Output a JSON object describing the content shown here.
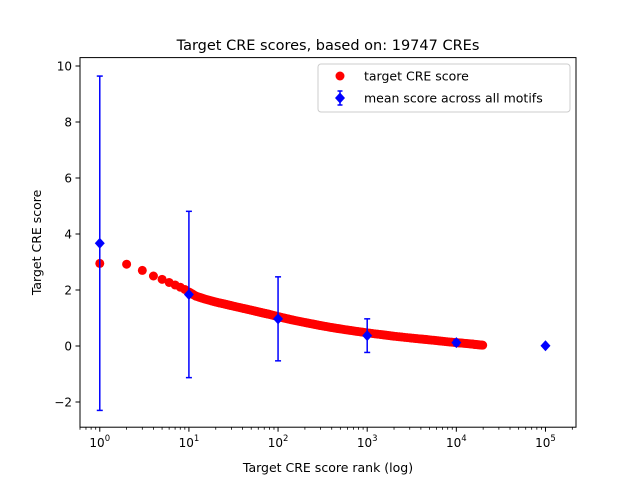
{
  "chart_data": {
    "type": "scatter",
    "title": "Target CRE scores, based on: 19747 CREs",
    "xlabel": "Target CRE score rank (log)",
    "ylabel": "Target CRE score",
    "xscale": "log",
    "xlim": [
      0.6,
      220000
    ],
    "ylim": [
      -2.9,
      10.3
    ],
    "grid": false,
    "legend_position": "upper-right",
    "x_ticks": [
      {
        "value": 1,
        "base": "10",
        "exp": "0"
      },
      {
        "value": 10,
        "base": "10",
        "exp": "1"
      },
      {
        "value": 100,
        "base": "10",
        "exp": "2"
      },
      {
        "value": 1000,
        "base": "10",
        "exp": "3"
      },
      {
        "value": 10000,
        "base": "10",
        "exp": "4"
      },
      {
        "value": 100000,
        "base": "10",
        "exp": "5"
      }
    ],
    "y_ticks": [
      {
        "value": -2,
        "label": "−2"
      },
      {
        "value": 0,
        "label": "0"
      },
      {
        "value": 2,
        "label": "2"
      },
      {
        "value": 4,
        "label": "4"
      },
      {
        "value": 6,
        "label": "6"
      },
      {
        "value": 8,
        "label": "8"
      },
      {
        "value": 10,
        "label": "10"
      }
    ],
    "series": [
      {
        "name": "target CRE score",
        "kind": "points",
        "color": "#ff0000",
        "marker": "circle",
        "x": [
          1,
          2,
          3,
          4,
          5,
          6,
          7,
          8,
          9,
          10,
          12,
          15,
          20,
          25,
          30,
          40,
          50,
          60,
          70,
          80,
          100,
          120,
          150,
          200,
          250,
          300,
          400,
          500,
          700,
          1000,
          1500,
          2000,
          3000,
          4000,
          5000,
          7000,
          10000,
          12000,
          15000,
          17000,
          19747
        ],
        "y": [
          2.95,
          2.92,
          2.7,
          2.5,
          2.38,
          2.27,
          2.18,
          2.1,
          2.02,
          1.93,
          1.78,
          1.68,
          1.57,
          1.5,
          1.44,
          1.35,
          1.28,
          1.22,
          1.17,
          1.13,
          1.05,
          0.99,
          0.92,
          0.84,
          0.78,
          0.73,
          0.66,
          0.61,
          0.54,
          0.47,
          0.4,
          0.35,
          0.29,
          0.25,
          0.22,
          0.17,
          0.12,
          0.1,
          0.07,
          0.05,
          0.03
        ]
      },
      {
        "name": "mean score across all motifs",
        "kind": "errorbar",
        "color": "#0000ff",
        "marker": "diamond",
        "x": [
          1,
          10,
          100,
          1000,
          10000,
          100000
        ],
        "y": [
          3.67,
          1.84,
          0.97,
          0.37,
          0.12,
          0.01
        ],
        "yerr": [
          5.97,
          2.97,
          1.5,
          0.6,
          0.1,
          0.0
        ]
      }
    ]
  }
}
